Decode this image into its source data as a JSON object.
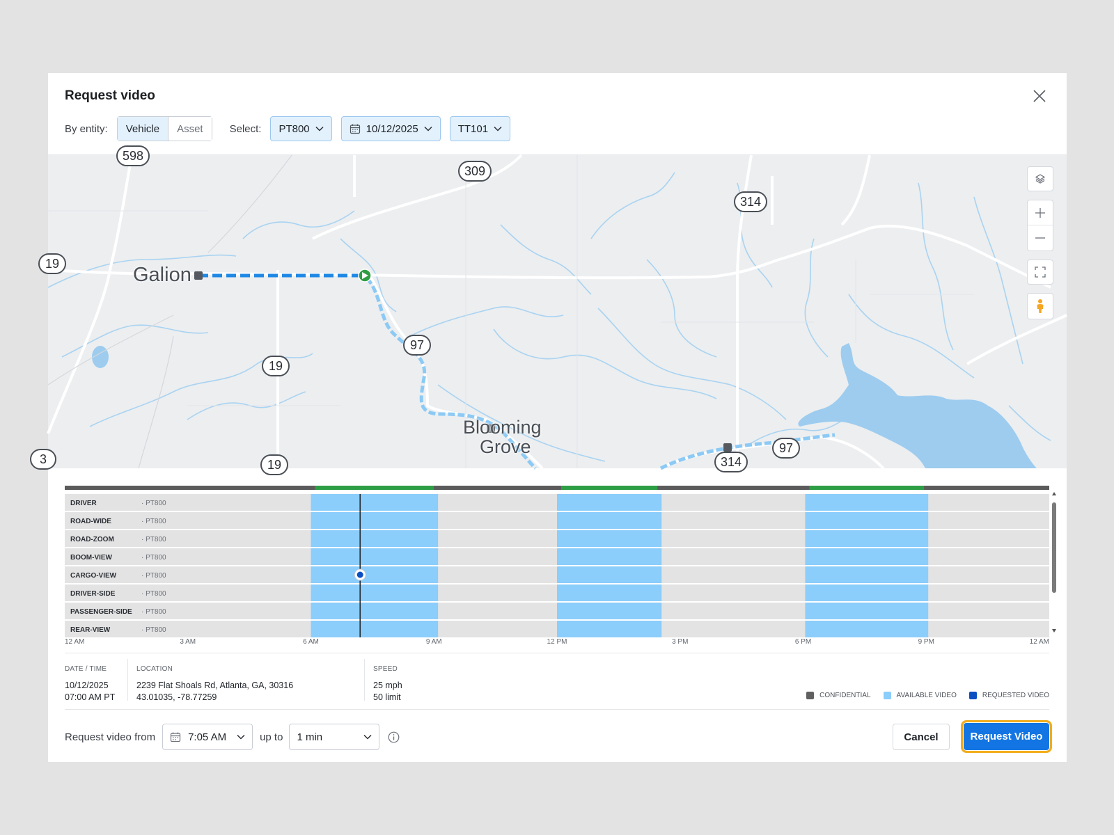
{
  "dialog": {
    "title": "Request video"
  },
  "toolbar": {
    "entity_label": "By entity:",
    "entity_options": [
      "Vehicle",
      "Asset"
    ],
    "entity_selected": "Vehicle",
    "select_label": "Select:",
    "vehicle": "PT800",
    "date": "10/12/2025",
    "trailer": "TT101"
  },
  "map": {
    "places": [
      "Galion",
      "Blooming",
      "Grove"
    ],
    "road_shields": [
      "309",
      "314",
      "19",
      "19",
      "19",
      "97",
      "97",
      "314",
      "598",
      "3"
    ],
    "controls": [
      "layers-icon",
      "zoom-in-icon",
      "zoom-out-icon",
      "fullscreen-icon",
      "street-view-icon"
    ]
  },
  "timeline": {
    "cameras": [
      {
        "name": "DRIVER",
        "asset": "PT800"
      },
      {
        "name": "ROAD-WIDE",
        "asset": "PT800"
      },
      {
        "name": "ROAD-ZOOM",
        "asset": "PT800"
      },
      {
        "name": "BOOM-VIEW",
        "asset": "PT800"
      },
      {
        "name": "CARGO-VIEW",
        "asset": "PT800"
      },
      {
        "name": "DRIVER-SIDE",
        "asset": "PT800"
      },
      {
        "name": "PASSENGER-SIDE",
        "asset": "PT800"
      },
      {
        "name": "REAR-VIEW",
        "asset": "PT800"
      }
    ],
    "axis_labels": [
      "12 AM",
      "3 AM",
      "6 AM",
      "9 AM",
      "12 PM",
      "3 PM",
      "6 PM",
      "9 PM",
      "12 AM"
    ],
    "available_ranges_hours": [
      [
        6.0,
        9.1
      ],
      [
        12.0,
        14.55
      ],
      [
        18.05,
        21.05
      ]
    ],
    "cursor_hour": 7.2,
    "selected_camera": "CARGO-VIEW"
  },
  "info": {
    "datetime_header": "DATE / TIME",
    "date": "10/12/2025",
    "time": "07:00 AM PT",
    "location_header": "LOCATION",
    "address": "2239 Flat Shoals Rd, Atlanta, GA, 30316",
    "coords": "43.01035, -78.77259",
    "speed_header": "SPEED",
    "speed": "25 mph",
    "limit": "50 limit"
  },
  "legend": {
    "confidential": "CONFIDENTIAL",
    "available": "AVAILABLE VIDEO",
    "requested": "REQUESTED VIDEO",
    "colors": {
      "confidential": "#606060",
      "available": "#8bcdfb",
      "requested": "#0b4fc3"
    }
  },
  "footer": {
    "from_label": "Request video from",
    "from_time": "7:05 AM",
    "upto_label": "up to",
    "duration": "1 min",
    "cancel": "Cancel",
    "submit": "Request Video"
  }
}
